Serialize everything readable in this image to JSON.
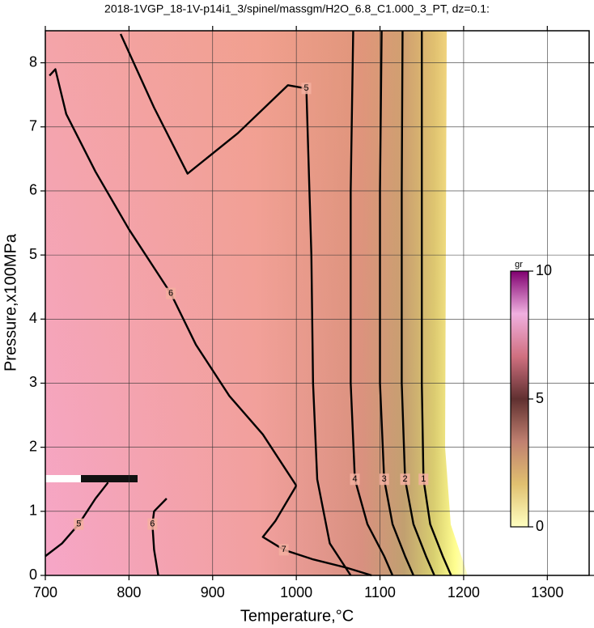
{
  "chart_data": {
    "type": "contour",
    "title": "2018-1VGP_18-1V-p14i1_3/spinel/massgm/H2O_6.8_C1.000_3_PT, dz=0.1:",
    "xlabel": "Temperature,°C",
    "ylabel": "Pressure,x100MPa",
    "xlim": [
      700,
      1350
    ],
    "ylim": [
      0,
      8.5
    ],
    "xticks": [
      700,
      800,
      900,
      1000,
      1100,
      1200,
      1300
    ],
    "yticks": [
      0,
      1,
      2,
      3,
      4,
      5,
      6,
      7,
      8
    ],
    "grid": true,
    "contours": [
      {
        "level": 1,
        "x": [
          1150,
          1150,
          1150,
          1152,
          1160,
          1175,
          1185
        ],
        "y": [
          8.5,
          6,
          3,
          1.5,
          0.8,
          0.3,
          0
        ]
      },
      {
        "level": 2,
        "x": [
          1127,
          1126,
          1126,
          1130,
          1140,
          1155,
          1165
        ],
        "y": [
          8.5,
          6,
          3,
          1.5,
          0.8,
          0.3,
          0
        ]
      },
      {
        "level": 3,
        "x": [
          1102,
          1100,
          1100,
          1105,
          1115,
          1130,
          1140
        ],
        "y": [
          8.5,
          6,
          3,
          1.5,
          0.8,
          0.3,
          0
        ]
      },
      {
        "level": 4,
        "x": [
          1068,
          1065,
          1065,
          1070,
          1085,
          1105,
          1115
        ],
        "y": [
          8.5,
          6,
          3,
          1.5,
          0.8,
          0.3,
          0
        ]
      },
      {
        "level": 5,
        "x": [
          790,
          830,
          870,
          930,
          990,
          1012,
          1018,
          1020,
          1025,
          1040,
          1065
        ],
        "y": [
          8.45,
          7.3,
          6.27,
          6.9,
          7.65,
          7.6,
          5,
          3,
          1.5,
          0.5,
          0
        ]
      },
      {
        "level": 6,
        "x": [
          705,
          712,
          725,
          760,
          800,
          850,
          880,
          920,
          960,
          990,
          1000
        ],
        "y": [
          7.8,
          7.9,
          7.2,
          6.3,
          5.4,
          4.4,
          3.6,
          2.8,
          2.2,
          1.6,
          1.4
        ]
      },
      {
        "level": 7,
        "x": [
          1000,
          975,
          960,
          985,
          1020,
          1060,
          1090
        ],
        "y": [
          1.4,
          0.85,
          0.6,
          0.4,
          0.25,
          0.12,
          0
        ]
      },
      {
        "level": 5,
        "x": [
          700,
          720,
          740,
          760,
          775
        ],
        "y": [
          0.3,
          0.5,
          0.8,
          1.2,
          1.45
        ]
      },
      {
        "level": 6,
        "x": [
          835,
          830,
          828,
          830,
          845
        ],
        "y": [
          0,
          0.4,
          0.8,
          1.0,
          1.2
        ]
      }
    ],
    "colorbar": {
      "label": "gr",
      "lim": [
        0,
        10
      ],
      "ticks": [
        0,
        5,
        10
      ],
      "colors": [
        "#ffffc0",
        "#e0c070",
        "#c08070",
        "#603030",
        "#d07080",
        "#f0b0e0",
        "#800070"
      ]
    }
  }
}
